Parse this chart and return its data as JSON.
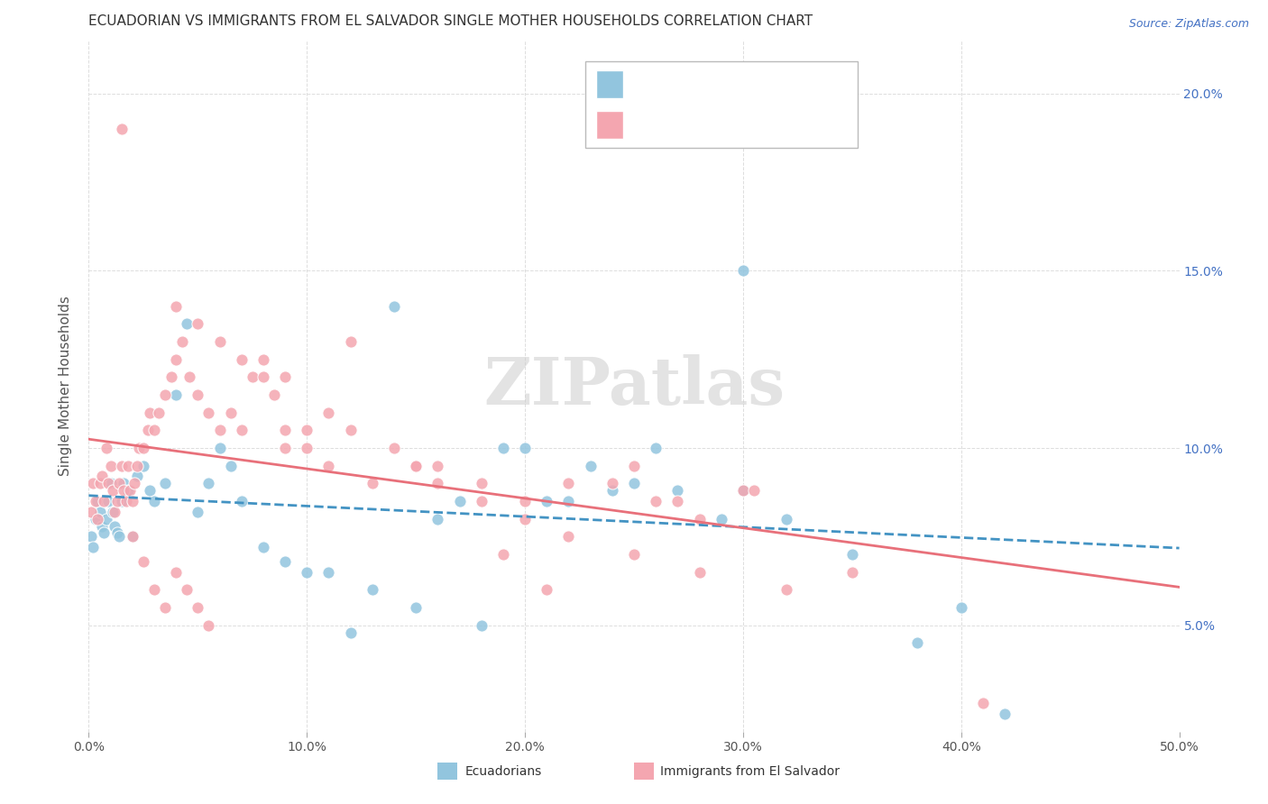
{
  "title": "ECUADORIAN VS IMMIGRANTS FROM EL SALVADOR SINGLE MOTHER HOUSEHOLDS CORRELATION CHART",
  "source": "Source: ZipAtlas.com",
  "ylabel": "Single Mother Households",
  "y_ticks": [
    0.05,
    0.1,
    0.15,
    0.2
  ],
  "y_tick_labels": [
    "5.0%",
    "10.0%",
    "15.0%",
    "20.0%"
  ],
  "xmin": 0.0,
  "xmax": 0.5,
  "ymin": 0.02,
  "ymax": 0.215,
  "blue_color": "#92c5de",
  "pink_color": "#f4a6b0",
  "blue_line_color": "#4393c3",
  "pink_line_color": "#e8707a",
  "watermark": "ZIPatlas",
  "blue_points_x": [
    0.001,
    0.002,
    0.003,
    0.004,
    0.005,
    0.006,
    0.007,
    0.008,
    0.009,
    0.01,
    0.011,
    0.012,
    0.013,
    0.014,
    0.015,
    0.016,
    0.018,
    0.02,
    0.022,
    0.025,
    0.028,
    0.03,
    0.035,
    0.04,
    0.045,
    0.05,
    0.055,
    0.06,
    0.065,
    0.07,
    0.08,
    0.09,
    0.1,
    0.11,
    0.12,
    0.13,
    0.15,
    0.17,
    0.19,
    0.21,
    0.23,
    0.25,
    0.27,
    0.29,
    0.3,
    0.32,
    0.35,
    0.38,
    0.4,
    0.42,
    0.3,
    0.2,
    0.22,
    0.16,
    0.18,
    0.24,
    0.26,
    0.14
  ],
  "blue_points_y": [
    0.075,
    0.072,
    0.08,
    0.085,
    0.082,
    0.078,
    0.076,
    0.08,
    0.085,
    0.09,
    0.082,
    0.078,
    0.076,
    0.075,
    0.085,
    0.09,
    0.088,
    0.075,
    0.092,
    0.095,
    0.088,
    0.085,
    0.09,
    0.115,
    0.135,
    0.082,
    0.09,
    0.1,
    0.095,
    0.085,
    0.072,
    0.068,
    0.065,
    0.065,
    0.048,
    0.06,
    0.055,
    0.085,
    0.1,
    0.085,
    0.095,
    0.09,
    0.088,
    0.08,
    0.088,
    0.08,
    0.07,
    0.045,
    0.055,
    0.025,
    0.15,
    0.1,
    0.085,
    0.08,
    0.05,
    0.088,
    0.1,
    0.14
  ],
  "pink_points_x": [
    0.001,
    0.002,
    0.003,
    0.004,
    0.005,
    0.006,
    0.007,
    0.008,
    0.009,
    0.01,
    0.011,
    0.012,
    0.013,
    0.014,
    0.015,
    0.016,
    0.017,
    0.018,
    0.019,
    0.02,
    0.021,
    0.022,
    0.023,
    0.025,
    0.027,
    0.028,
    0.03,
    0.032,
    0.035,
    0.038,
    0.04,
    0.043,
    0.046,
    0.05,
    0.055,
    0.06,
    0.065,
    0.07,
    0.075,
    0.08,
    0.085,
    0.09,
    0.1,
    0.11,
    0.13,
    0.15,
    0.18,
    0.2,
    0.22,
    0.25,
    0.27,
    0.3,
    0.35,
    0.12,
    0.14,
    0.16,
    0.09,
    0.24,
    0.26,
    0.28,
    0.04,
    0.05,
    0.06,
    0.07,
    0.08,
    0.09,
    0.1,
    0.11,
    0.12,
    0.15,
    0.16,
    0.18,
    0.2,
    0.22,
    0.25,
    0.28,
    0.32,
    0.015,
    0.02,
    0.025,
    0.03,
    0.035,
    0.04,
    0.045,
    0.05,
    0.055,
    0.19,
    0.41,
    0.305,
    0.21
  ],
  "pink_points_y": [
    0.082,
    0.09,
    0.085,
    0.08,
    0.09,
    0.092,
    0.085,
    0.1,
    0.09,
    0.095,
    0.088,
    0.082,
    0.085,
    0.09,
    0.095,
    0.088,
    0.085,
    0.095,
    0.088,
    0.085,
    0.09,
    0.095,
    0.1,
    0.1,
    0.105,
    0.11,
    0.105,
    0.11,
    0.115,
    0.12,
    0.125,
    0.13,
    0.12,
    0.115,
    0.11,
    0.105,
    0.11,
    0.105,
    0.12,
    0.125,
    0.115,
    0.12,
    0.105,
    0.11,
    0.09,
    0.095,
    0.09,
    0.085,
    0.09,
    0.095,
    0.085,
    0.088,
    0.065,
    0.105,
    0.1,
    0.095,
    0.1,
    0.09,
    0.085,
    0.08,
    0.14,
    0.135,
    0.13,
    0.125,
    0.12,
    0.105,
    0.1,
    0.095,
    0.13,
    0.095,
    0.09,
    0.085,
    0.08,
    0.075,
    0.07,
    0.065,
    0.06,
    0.19,
    0.075,
    0.068,
    0.06,
    0.055,
    0.065,
    0.06,
    0.055,
    0.05,
    0.07,
    0.028,
    0.088,
    0.06
  ]
}
